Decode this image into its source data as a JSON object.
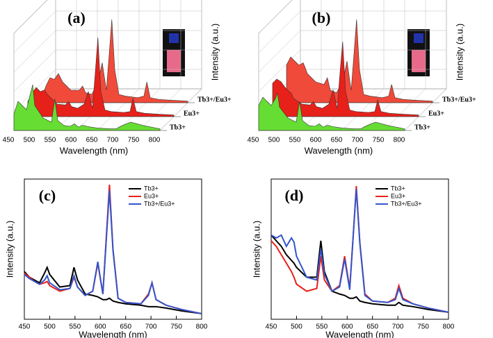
{
  "chart_data": [
    {
      "type": "waterfall",
      "title": "(a)",
      "x_label": "Wavelength (nm)",
      "y_label": "Intensity (a.u.)",
      "xlim": [
        450,
        800
      ],
      "xticks": [
        450,
        500,
        550,
        600,
        650,
        700,
        750,
        800
      ],
      "ylim": [
        0,
        100
      ],
      "x": [
        450,
        460,
        470,
        480,
        490,
        495,
        500,
        520,
        540,
        548,
        555,
        570,
        585,
        595,
        605,
        612,
        618,
        625,
        635,
        650,
        680,
        695,
        702,
        710,
        730,
        760,
        800
      ],
      "series": [
        {
          "name": "Tb3+",
          "color": "#66dd33",
          "values": [
            20,
            35,
            30,
            25,
            45,
            55,
            30,
            15,
            10,
            38,
            12,
            6,
            5,
            8,
            4,
            6,
            6,
            5,
            4,
            3,
            2,
            2,
            4,
            6,
            10,
            6,
            2
          ]
        },
        {
          "name": "Eu3+",
          "color": "#e8201a",
          "values": [
            18,
            28,
            35,
            30,
            32,
            28,
            25,
            15,
            14,
            18,
            12,
            10,
            15,
            30,
            10,
            55,
            95,
            30,
            8,
            6,
            5,
            6,
            22,
            6,
            4,
            3,
            2
          ]
        },
        {
          "name": "Tb3+/Eu3+",
          "color": "#f04a3a",
          "values": [
            5,
            20,
            30,
            28,
            35,
            30,
            25,
            15,
            15,
            20,
            12,
            10,
            25,
            48,
            15,
            60,
            100,
            40,
            10,
            8,
            6,
            8,
            25,
            6,
            4,
            3,
            2
          ]
        }
      ]
    },
    {
      "type": "waterfall",
      "title": "(b)",
      "x_label": "Wavelength (nm)",
      "y_label": "Intensity (a.u.)",
      "xlim": [
        450,
        800
      ],
      "xticks": [
        450,
        500,
        550,
        600,
        650,
        700,
        750,
        800
      ],
      "ylim": [
        0,
        100
      ],
      "x": [
        450,
        460,
        470,
        480,
        490,
        495,
        500,
        520,
        540,
        548,
        555,
        570,
        585,
        595,
        605,
        612,
        618,
        625,
        635,
        650,
        680,
        695,
        702,
        710,
        730,
        760,
        800
      ],
      "series": [
        {
          "name": "Tb3+",
          "color": "#66dd33",
          "values": [
            30,
            40,
            35,
            30,
            38,
            45,
            28,
            15,
            10,
            35,
            12,
            6,
            5,
            8,
            4,
            6,
            6,
            5,
            4,
            3,
            2,
            2,
            4,
            6,
            10,
            6,
            2
          ]
        },
        {
          "name": "Eu3+",
          "color": "#e8201a",
          "values": [
            40,
            45,
            42,
            35,
            30,
            28,
            22,
            15,
            14,
            18,
            12,
            10,
            15,
            32,
            10,
            55,
            90,
            30,
            8,
            6,
            5,
            6,
            20,
            6,
            4,
            3,
            2
          ]
        },
        {
          "name": "Tb3+/Eu3+",
          "color": "#f04a3a",
          "values": [
            45,
            55,
            50,
            45,
            48,
            42,
            35,
            25,
            22,
            30,
            15,
            12,
            25,
            50,
            15,
            60,
            100,
            40,
            10,
            8,
            6,
            8,
            22,
            6,
            4,
            3,
            2
          ]
        }
      ]
    },
    {
      "type": "line",
      "title": "(c)",
      "x_label": "Wavelength (nm)",
      "y_label": "Intensity (a.u.)",
      "xlim": [
        450,
        800
      ],
      "xticks": [
        450,
        500,
        550,
        600,
        650,
        700,
        750,
        800
      ],
      "ylim": [
        0,
        100
      ],
      "x": [
        450,
        460,
        470,
        480,
        490,
        495,
        500,
        520,
        540,
        548,
        555,
        570,
        585,
        595,
        605,
        612,
        618,
        625,
        635,
        650,
        680,
        695,
        702,
        710,
        730,
        760,
        800
      ],
      "series": [
        {
          "name": "Tb3+",
          "color": "#000000",
          "values": [
            34,
            30,
            28,
            26,
            33,
            37,
            32,
            23,
            24,
            37,
            28,
            18,
            17,
            16,
            14,
            14,
            15,
            13,
            12,
            11,
            10,
            9,
            9,
            9,
            8,
            6,
            4
          ]
        },
        {
          "name": "Eu3+",
          "color": "#e8201a",
          "values": [
            33,
            30,
            27,
            25,
            26,
            27,
            24,
            20,
            22,
            30,
            23,
            17,
            20,
            40,
            18,
            60,
            96,
            50,
            15,
            12,
            11,
            18,
            26,
            14,
            10,
            7,
            4
          ]
        },
        {
          "name": "Tb3+/Eu3+",
          "color": "#3355cc",
          "values": [
            32,
            29,
            27,
            25,
            28,
            31,
            26,
            21,
            22,
            31,
            23,
            17,
            20,
            41,
            18,
            58,
            92,
            49,
            15,
            12,
            11,
            17,
            26,
            14,
            10,
            7,
            4
          ]
        }
      ]
    },
    {
      "type": "line",
      "title": "(d)",
      "x_label": "Wavelength (nm)",
      "y_label": "Intensity (a.u.)",
      "xlim": [
        450,
        800
      ],
      "xticks": [
        450,
        500,
        550,
        600,
        650,
        700,
        750,
        800
      ],
      "ylim": [
        0,
        100
      ],
      "x": [
        450,
        460,
        470,
        480,
        490,
        495,
        500,
        520,
        540,
        548,
        555,
        570,
        585,
        595,
        605,
        612,
        618,
        625,
        635,
        650,
        680,
        695,
        702,
        710,
        730,
        760,
        800
      ],
      "series": [
        {
          "name": "Tb3+",
          "color": "#000000",
          "values": [
            60,
            56,
            52,
            46,
            42,
            40,
            37,
            30,
            30,
            56,
            34,
            20,
            18,
            17,
            15,
            15,
            16,
            13,
            12,
            11,
            10,
            10,
            12,
            10,
            9,
            7,
            5
          ]
        },
        {
          "name": "Eu3+",
          "color": "#e8201a",
          "values": [
            56,
            52,
            46,
            40,
            34,
            30,
            25,
            20,
            22,
            45,
            28,
            20,
            24,
            45,
            22,
            60,
            95,
            55,
            18,
            13,
            12,
            15,
            24,
            15,
            11,
            8,
            5
          ]
        },
        {
          "name": "Tb3+/Eu3+",
          "color": "#3355cc",
          "values": [
            60,
            58,
            60,
            52,
            58,
            55,
            45,
            30,
            28,
            50,
            32,
            20,
            23,
            43,
            21,
            60,
            93,
            54,
            17,
            13,
            12,
            14,
            22,
            14,
            11,
            8,
            5
          ]
        }
      ]
    }
  ]
}
